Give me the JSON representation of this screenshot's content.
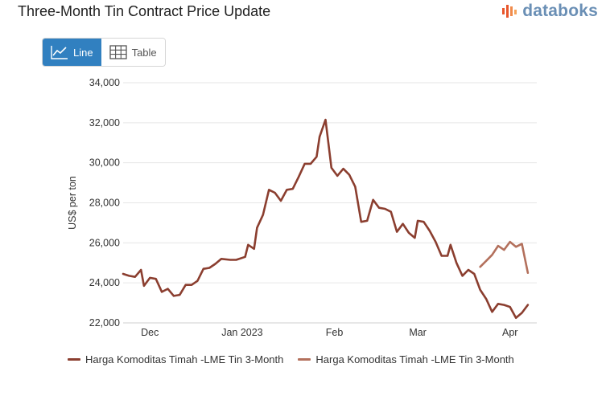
{
  "header": {
    "title": "Three-Month Tin Contract Price Update"
  },
  "brand": {
    "name": "databoks",
    "color": "#6a8fb5",
    "accent": "#e8562b"
  },
  "view_toggle": {
    "line_label": "Line",
    "table_label": "Table",
    "selected": "Line",
    "active_color": "#3180c0"
  },
  "chart_data": {
    "type": "line",
    "title": "",
    "xlabel": "",
    "ylabel": "US$ per ton",
    "ylim": [
      22000,
      34000
    ],
    "yticks": [
      "22,000",
      "24,000",
      "26,000",
      "28,000",
      "30,000",
      "32,000",
      "34,000"
    ],
    "xlim": [
      "2022-11-22",
      "2023-04-10"
    ],
    "xticks": [
      {
        "date": "2022-12-01",
        "label": "Dec"
      },
      {
        "date": "2023-01-01",
        "label": "Jan 2023"
      },
      {
        "date": "2023-02-01",
        "label": "Feb"
      },
      {
        "date": "2023-03-01",
        "label": "Mar"
      },
      {
        "date": "2023-04-01",
        "label": "Apr"
      }
    ],
    "grid": true,
    "legend_position": "bottom",
    "series": [
      {
        "name": "Harga Komoditas Timah -LME Tin 3-Month",
        "color": "#8b3e2f",
        "x": [
          "2022-11-22",
          "2022-11-24",
          "2022-11-26",
          "2022-11-28",
          "2022-11-29",
          "2022-12-01",
          "2022-12-03",
          "2022-12-05",
          "2022-12-07",
          "2022-12-09",
          "2022-12-11",
          "2022-12-13",
          "2022-12-15",
          "2022-12-17",
          "2022-12-19",
          "2022-12-21",
          "2022-12-23",
          "2022-12-25",
          "2022-12-28",
          "2022-12-30",
          "2023-01-02",
          "2023-01-03",
          "2023-01-05",
          "2023-01-06",
          "2023-01-08",
          "2023-01-10",
          "2023-01-12",
          "2023-01-14",
          "2023-01-16",
          "2023-01-18",
          "2023-01-20",
          "2023-01-22",
          "2023-01-24",
          "2023-01-26",
          "2023-01-27",
          "2023-01-29",
          "2023-01-31",
          "2023-02-02",
          "2023-02-04",
          "2023-02-06",
          "2023-02-08",
          "2023-02-10",
          "2023-02-12",
          "2023-02-14",
          "2023-02-16",
          "2023-02-18",
          "2023-02-20",
          "2023-02-22",
          "2023-02-24",
          "2023-02-26",
          "2023-02-28",
          "2023-03-01",
          "2023-03-03",
          "2023-03-05",
          "2023-03-07",
          "2023-03-09",
          "2023-03-11",
          "2023-03-12",
          "2023-03-14",
          "2023-03-16",
          "2023-03-18",
          "2023-03-20",
          "2023-03-22",
          "2023-03-24",
          "2023-03-26",
          "2023-03-28",
          "2023-03-30",
          "2023-04-01",
          "2023-04-03",
          "2023-04-05",
          "2023-04-07"
        ],
        "y": [
          24450,
          24350,
          24300,
          24650,
          23850,
          24250,
          24200,
          23550,
          23700,
          23350,
          23400,
          23900,
          23900,
          24100,
          24700,
          24750,
          24950,
          25200,
          25150,
          25150,
          25300,
          25900,
          25700,
          26750,
          27400,
          28650,
          28500,
          28100,
          28650,
          28700,
          29300,
          29950,
          29950,
          30300,
          31300,
          32150,
          29750,
          29350,
          29700,
          29400,
          28800,
          27050,
          27100,
          28150,
          27750,
          27700,
          27550,
          26550,
          26950,
          26500,
          26250,
          27100,
          27050,
          26600,
          26050,
          25350,
          25350,
          25900,
          25000,
          24350,
          24650,
          24450,
          23650,
          23200,
          22550,
          22950,
          22900,
          22800,
          22250,
          22500,
          22900
        ]
      },
      {
        "name": "Harga Komoditas Timah -LME Tin 3-Month",
        "color": "#b3705c",
        "x": [
          "2023-03-22",
          "2023-03-24",
          "2023-03-26",
          "2023-03-28",
          "2023-03-30",
          "2023-04-01",
          "2023-04-03",
          "2023-04-05",
          "2023-04-07"
        ],
        "y": [
          24800,
          25100,
          25400,
          25850,
          25650,
          26050,
          25800,
          25950,
          24500
        ]
      }
    ]
  }
}
